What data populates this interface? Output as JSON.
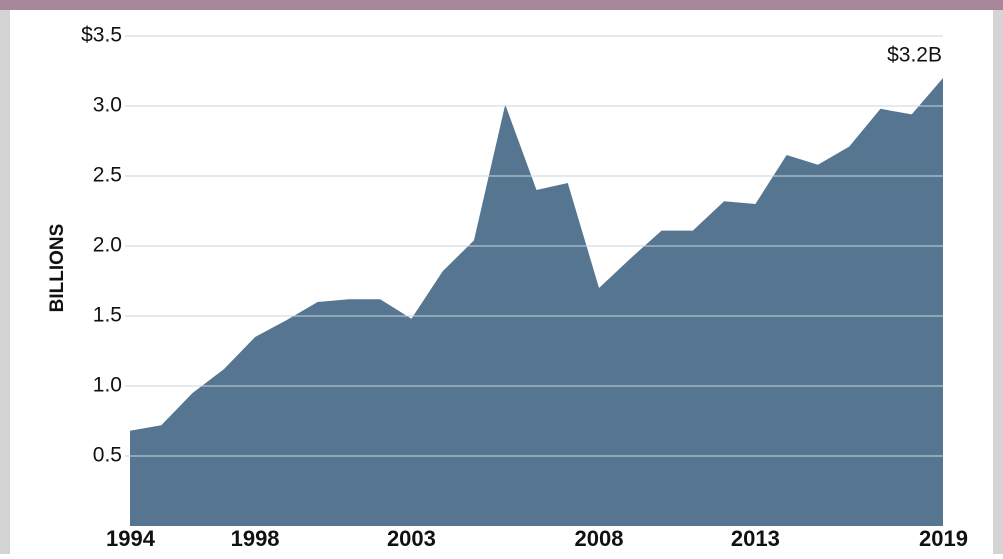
{
  "chart_data": {
    "type": "area",
    "y_label": "BILLIONS",
    "annotation": "$3.2B",
    "categories": [
      "1994",
      null,
      null,
      null,
      "1998",
      null,
      null,
      null,
      null,
      "2003",
      null,
      null,
      null,
      null,
      null,
      "2008",
      null,
      null,
      null,
      null,
      "2013",
      null,
      null,
      null,
      null,
      null,
      "2019"
    ],
    "values": [
      0.68,
      0.72,
      0.95,
      1.12,
      1.35,
      1.47,
      1.6,
      1.62,
      1.62,
      1.48,
      1.82,
      2.04,
      3.01,
      2.4,
      2.45,
      1.7,
      1.91,
      2.11,
      2.11,
      2.32,
      2.3,
      2.65,
      2.58,
      2.71,
      2.98,
      2.94,
      3.2
    ],
    "color": "#557590",
    "ylim": [
      0,
      3.5
    ],
    "yticks": [
      0.5,
      {
        "value": 1,
        "label": "1.0"
      },
      1.5,
      {
        "value": 2,
        "label": "2.0"
      },
      2.5,
      {
        "value": 3,
        "label": "3.0"
      },
      {
        "value": 3.5,
        "label": "$3.5"
      }
    ],
    "grid": true
  }
}
